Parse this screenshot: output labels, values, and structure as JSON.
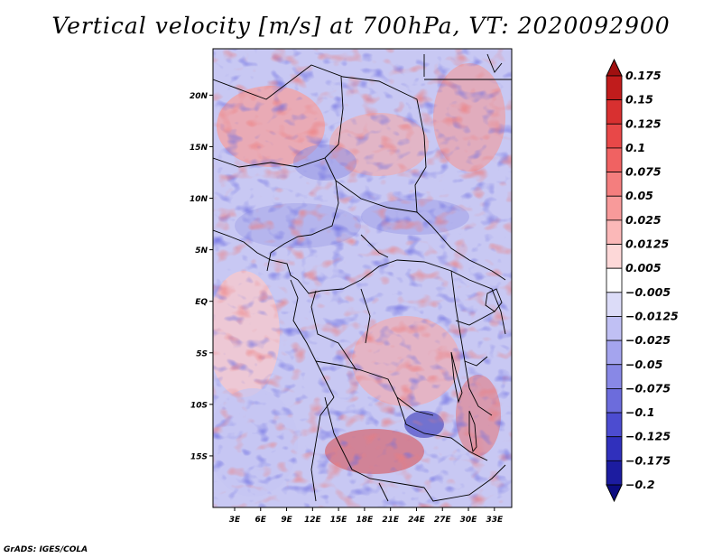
{
  "title": "Vertical velocity [m/s] at 700hPa, VT: 2020092900",
  "credit": "GrADS: IGES/COLA",
  "map": {
    "lon_ticks": [
      "3E",
      "6E",
      "9E",
      "12E",
      "15E",
      "18E",
      "21E",
      "24E",
      "27E",
      "30E",
      "33E"
    ],
    "lat_ticks": [
      "20N",
      "15N",
      "10N",
      "5N",
      "EQ",
      "5S",
      "10S",
      "15S"
    ],
    "lon_values": [
      3,
      6,
      9,
      12,
      15,
      18,
      21,
      24,
      27,
      30,
      33
    ],
    "lat_values": [
      20,
      15,
      10,
      5,
      0,
      -5,
      -10,
      -15
    ],
    "lon_range": [
      0.5,
      35
    ],
    "lat_range": [
      -20,
      24.5
    ]
  },
  "colorbar": {
    "labels": [
      "0.175",
      "0.15",
      "0.125",
      "0.1",
      "0.075",
      "0.05",
      "0.025",
      "0.0125",
      "0.005",
      "−0.005",
      "−0.0125",
      "−0.025",
      "−0.05",
      "−0.075",
      "−0.1",
      "−0.125",
      "−0.175",
      "−0.2"
    ],
    "colors": [
      "#a01010",
      "#c01c1c",
      "#d83030",
      "#e84848",
      "#f06262",
      "#f47e7e",
      "#f89a9a",
      "#fbb8b8",
      "#fdd8d8",
      "#ffffff",
      "#dcdcf8",
      "#c0c0f4",
      "#a4a4ee",
      "#8888e6",
      "#6c6cdc",
      "#4c4cd0",
      "#3030bc",
      "#1c1ca0",
      "#0c0c80"
    ]
  }
}
